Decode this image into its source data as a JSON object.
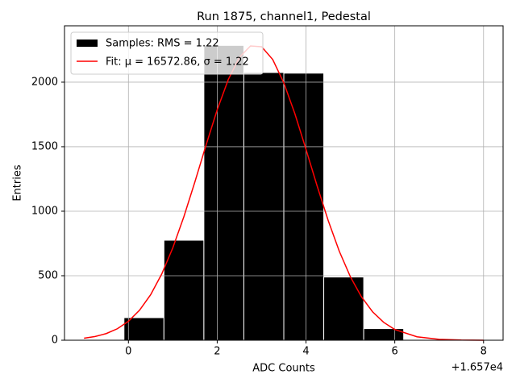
{
  "chart_data": {
    "type": "histogram",
    "title": "Run 1875, channel1, Pedestal",
    "x_label": "ADC Counts",
    "y_label": "Entries",
    "x_offset_text": "+1.657e4",
    "name": "Samples: RMS = 1.22",
    "color": "#000000",
    "bins": [
      -1,
      -0.1,
      0.8,
      1.7,
      2.6,
      3.5,
      4.4,
      5.3,
      6.2,
      7.1,
      8
    ],
    "counts": [
      5,
      175,
      775,
      2285,
      2075,
      2070,
      490,
      90,
      0,
      0
    ],
    "fit": {
      "name": "Fit: μ = 16572.86, σ = 1.22",
      "color": "#ff0000",
      "x": [
        -1,
        -0.75,
        -0.5,
        -0.25,
        0,
        0.25,
        0.5,
        0.75,
        1,
        1.25,
        1.5,
        1.75,
        2,
        2.25,
        2.5,
        2.75,
        3,
        3.25,
        3.5,
        3.75,
        4,
        4.25,
        4.5,
        4.75,
        5,
        5.25,
        5.5,
        5.75,
        6,
        6.5,
        7,
        7.5,
        8
      ],
      "values": [
        15.3,
        28.7,
        51.6,
        88.9,
        146.7,
        232.3,
        352.6,
        513.2,
        716.3,
        958.6,
        1230.4,
        1513.9,
        1786.2,
        2020.9,
        2192.5,
        2280.6,
        2274.9,
        2176,
        1995.5,
        1755,
        1479.8,
        1196.5,
        927.9,
        689.7,
        491.7,
        336.2,
        220.3,
        138.5,
        83.4,
        26.7,
        7.2,
        1.7,
        0.3
      ]
    },
    "xlim": [
      -1.44,
      8.44
    ],
    "ylim": [
      0,
      2437
    ],
    "xticks": [
      0,
      2,
      4,
      6,
      8
    ],
    "yticks": [
      0,
      500,
      1000,
      1500,
      2000
    ],
    "grid": true,
    "legend": "upper left"
  }
}
